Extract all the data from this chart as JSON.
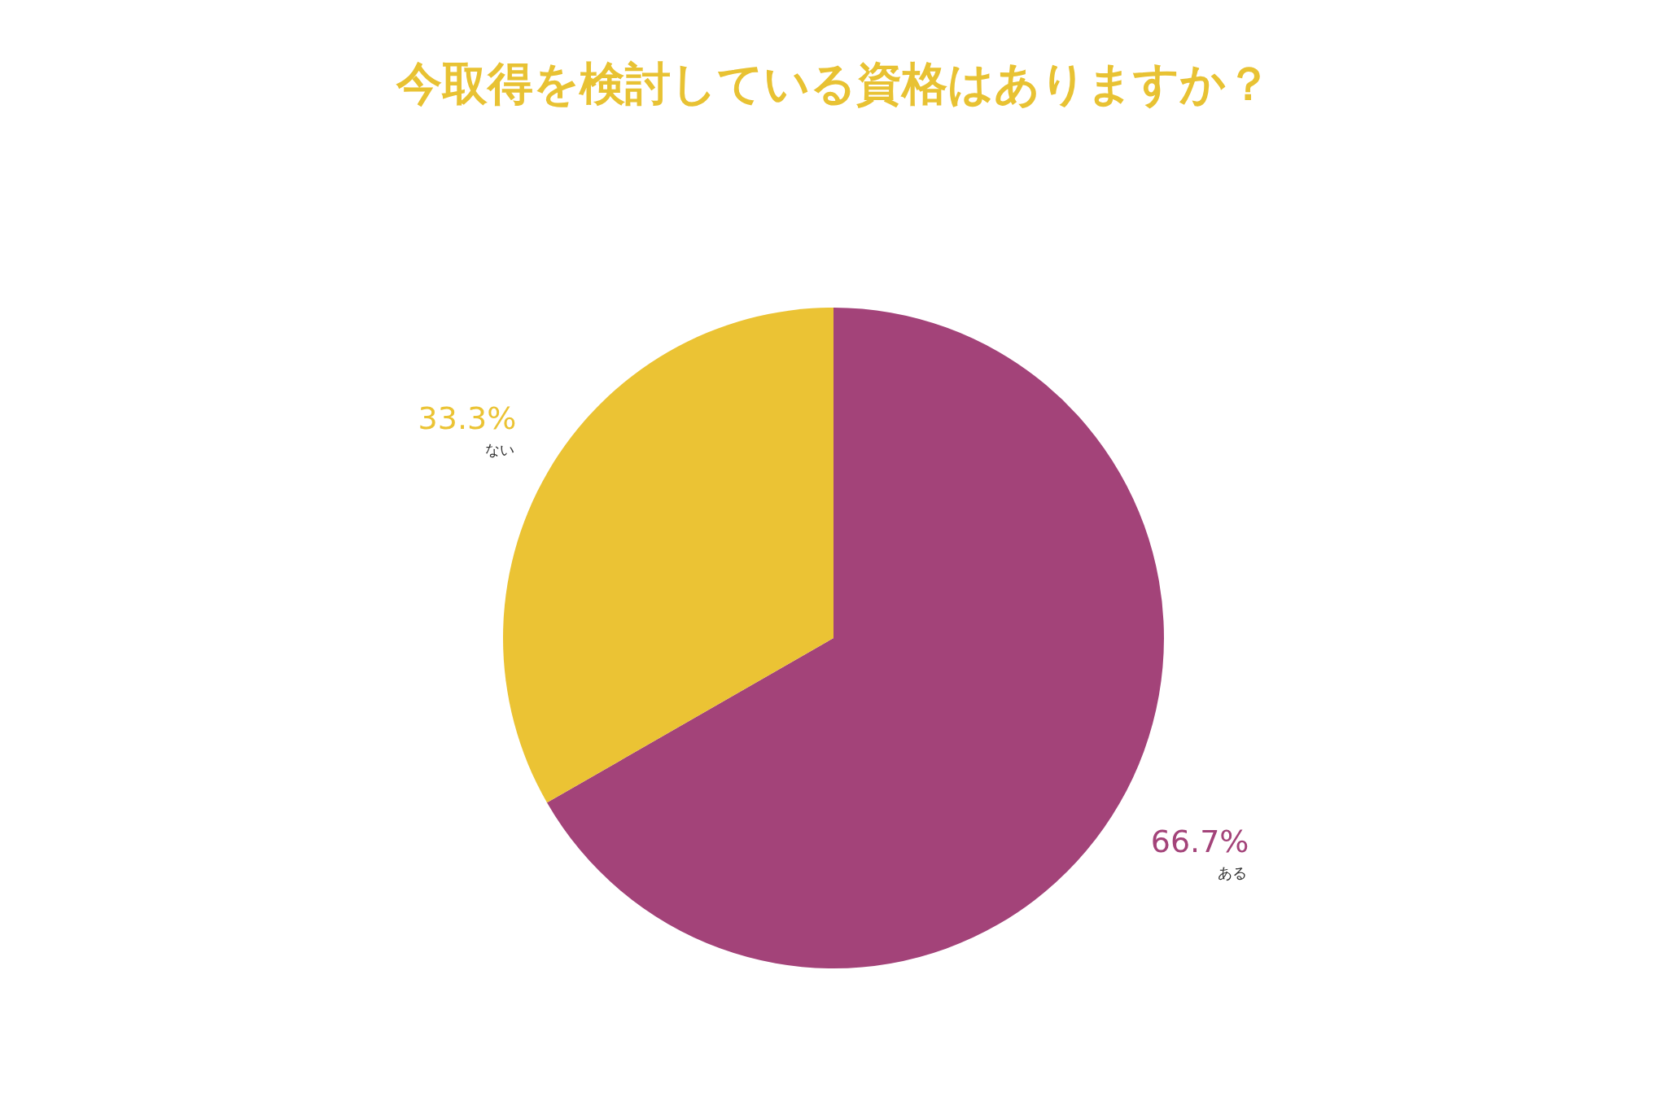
{
  "chart_data": {
    "type": "pie",
    "title": "今取得を検討している資格はありますか？",
    "categories": [
      "ある",
      "ない"
    ],
    "values": [
      66.7,
      33.3
    ],
    "colors": [
      "#a34379",
      "#ebc334"
    ],
    "value_labels": [
      "66.7%",
      "33.3%"
    ],
    "legend": false
  }
}
